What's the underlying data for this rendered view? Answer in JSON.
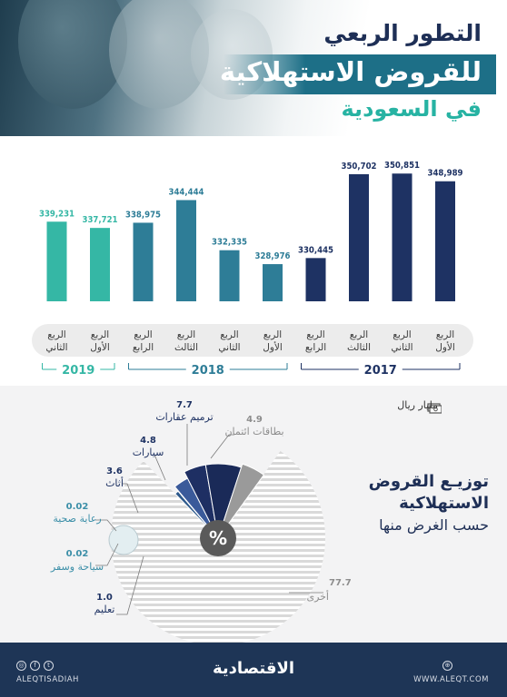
{
  "header": {
    "title_line1": "التطور الربعي",
    "title_line2": "للقروض الاستهلاكية",
    "title_line3": "في السعودية"
  },
  "colors": {
    "navy": "#1e3263",
    "teal_dark": "#2e7d97",
    "teal_light": "#35b7a5",
    "label_bg": "#ececec",
    "footer_bg": "#1e3556"
  },
  "chart_data": [
    {
      "type": "bar",
      "categories": [
        "الربع الأول",
        "الربع الثاني",
        "الربع الثالث",
        "الربع الرابع",
        "الربع الأول",
        "الربع الثاني",
        "الربع الثالث",
        "الربع الرابع",
        "الربع الأول",
        "الربع الثاني"
      ],
      "category_lines": [
        [
          "الربع",
          "الأول"
        ],
        [
          "الربع",
          "الثاني"
        ],
        [
          "الربع",
          "الثالث"
        ],
        [
          "الربع",
          "الرابع"
        ],
        [
          "الربع",
          "الأول"
        ],
        [
          "الربع",
          "الثاني"
        ],
        [
          "الربع",
          "الثالث"
        ],
        [
          "الربع",
          "الرابع"
        ],
        [
          "الربع",
          "الأول"
        ],
        [
          "الربع",
          "الثاني"
        ]
      ],
      "years": [
        2017,
        2017,
        2017,
        2017,
        2018,
        2018,
        2018,
        2018,
        2019,
        2019
      ],
      "values": [
        348989,
        350851,
        350702,
        330445,
        328976,
        332335,
        344444,
        338975,
        337721,
        339231
      ],
      "value_labels": [
        "348,989",
        "350,851",
        "350,702",
        "330,445",
        "328,976",
        "332,335",
        "344,444",
        "338,975",
        "337,721",
        "339,231"
      ],
      "year_groups": [
        {
          "label": "2017",
          "color": "#1e3263"
        },
        {
          "label": "2018",
          "color": "#2e7d97"
        },
        {
          "label": "2019",
          "color": "#35b7a5"
        }
      ],
      "unit": "مليار ريال"
    },
    {
      "type": "pie",
      "title": "توزيع القروض الاستهلاكية حسب الغرض منها",
      "slices": [
        {
          "label": "أخرى",
          "value": 77.7,
          "value_label": "77.7"
        },
        {
          "label": "تعليم",
          "value": 1.0,
          "value_label": "1.0"
        },
        {
          "label": "سياحة وسفر",
          "value": 0.02,
          "value_label": "0.02"
        },
        {
          "label": "رعاية صحية",
          "value": 0.02,
          "value_label": "0.02"
        },
        {
          "label": "أثاث",
          "value": 3.6,
          "value_label": "3.6"
        },
        {
          "label": "سيارات",
          "value": 4.8,
          "value_label": "4.8"
        },
        {
          "label": "ترميم عقارات",
          "value": 7.7,
          "value_label": "7.7"
        },
        {
          "label": "بطاقات ائتمان",
          "value": 4.9,
          "value_label": "4.9"
        }
      ],
      "center_icon": "percent-icon"
    }
  ],
  "pie_title": {
    "line1": "توزيـع القروض",
    "line2": "الاستهلاكية",
    "line3": "حسب الغرض منها"
  },
  "footer": {
    "brand": "الاقتصادية",
    "handle": "ALEQTISADIAH",
    "website": "WWW.ALEQT.COM",
    "social_icons": [
      "instagram-icon",
      "facebook-icon",
      "twitter-icon"
    ],
    "site_icon": "globe-icon"
  }
}
